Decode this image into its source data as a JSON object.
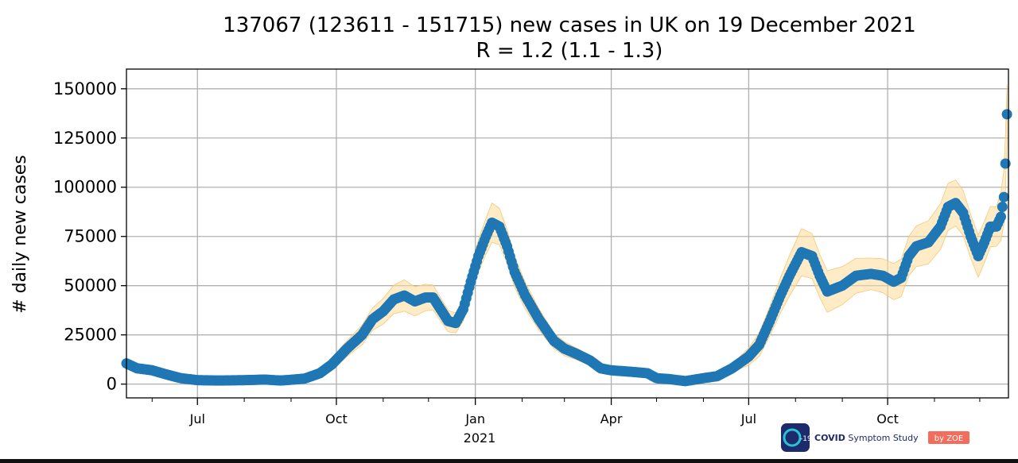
{
  "chart_data": {
    "type": "line",
    "title": "137067 (123611 - 151715) new cases in UK on 19 December 2021",
    "subtitle": "R = 1.2 (1.1 - 1.3)",
    "xlabel": "",
    "ylabel": "# daily new cases",
    "ylim": [
      -7000,
      160000
    ],
    "xlim": [
      "2020-05-15",
      "2021-12-20"
    ],
    "yticks": [
      0,
      25000,
      50000,
      75000,
      100000,
      125000,
      150000
    ],
    "ytick_labels": [
      "0",
      "25000",
      "50000",
      "75000",
      "100000",
      "125000",
      "150000"
    ],
    "xtick_major": [
      {
        "date": "2020-07-01",
        "label": "Jul"
      },
      {
        "date": "2020-10-01",
        "label": "Oct"
      },
      {
        "date": "2021-01-01",
        "label": "Jan"
      },
      {
        "date": "2021-04-01",
        "label": "Apr"
      },
      {
        "date": "2021-07-01",
        "label": "Jul"
      },
      {
        "date": "2021-10-01",
        "label": "Oct"
      }
    ],
    "xtick_minor_dates": [
      "2020-06-01",
      "2020-08-01",
      "2020-09-01",
      "2020-11-01",
      "2020-12-01",
      "2021-02-01",
      "2021-03-01",
      "2021-05-01",
      "2021-06-01",
      "2021-08-01",
      "2021-09-01",
      "2021-11-01",
      "2021-12-01"
    ],
    "year_label": {
      "date": "2021-01-01",
      "label": "2021"
    },
    "grid": true,
    "colors": {
      "series": "#1f77b4",
      "band": "#ffdd99"
    },
    "series": [
      {
        "values": [
          [
            "2020-05-15",
            10500
          ],
          [
            "2020-05-22",
            8000
          ],
          [
            "2020-06-01",
            7000
          ],
          [
            "2020-06-10",
            5000
          ],
          [
            "2020-06-20",
            3000
          ],
          [
            "2020-07-01",
            2000
          ],
          [
            "2020-07-15",
            1800
          ],
          [
            "2020-08-01",
            2000
          ],
          [
            "2020-08-15",
            2300
          ],
          [
            "2020-08-25",
            1800
          ],
          [
            "2020-09-01",
            2200
          ],
          [
            "2020-09-10",
            2800
          ],
          [
            "2020-09-20",
            5500
          ],
          [
            "2020-09-28",
            10000
          ],
          [
            "2020-10-08",
            18000
          ],
          [
            "2020-10-18",
            25000
          ],
          [
            "2020-10-25",
            33000
          ],
          [
            "2020-11-01",
            37000
          ],
          [
            "2020-11-08",
            43000
          ],
          [
            "2020-11-15",
            45000
          ],
          [
            "2020-11-22",
            42000
          ],
          [
            "2020-11-29",
            44000
          ],
          [
            "2020-12-04",
            44000
          ],
          [
            "2020-12-09",
            38000
          ],
          [
            "2020-12-14",
            32000
          ],
          [
            "2020-12-19",
            31000
          ],
          [
            "2020-12-24",
            38000
          ],
          [
            "2020-12-29",
            52000
          ],
          [
            "2021-01-03",
            65000
          ],
          [
            "2021-01-08",
            75000
          ],
          [
            "2021-01-12",
            82000
          ],
          [
            "2021-01-17",
            80000
          ],
          [
            "2021-01-22",
            70000
          ],
          [
            "2021-01-27",
            57000
          ],
          [
            "2021-02-03",
            45000
          ],
          [
            "2021-02-12",
            33000
          ],
          [
            "2021-02-22",
            22000
          ],
          [
            "2021-03-01",
            18000
          ],
          [
            "2021-03-10",
            15000
          ],
          [
            "2021-03-18",
            12000
          ],
          [
            "2021-03-25",
            8000
          ],
          [
            "2021-04-01",
            7000
          ],
          [
            "2021-04-10",
            6500
          ],
          [
            "2021-04-18",
            6000
          ],
          [
            "2021-04-25",
            5500
          ],
          [
            "2021-05-01",
            3000
          ],
          [
            "2021-05-10",
            2500
          ],
          [
            "2021-05-20",
            1500
          ],
          [
            "2021-06-01",
            3000
          ],
          [
            "2021-06-10",
            4000
          ],
          [
            "2021-06-20",
            8000
          ],
          [
            "2021-07-01",
            14000
          ],
          [
            "2021-07-08",
            20000
          ],
          [
            "2021-07-15",
            32000
          ],
          [
            "2021-07-22",
            45000
          ],
          [
            "2021-07-28",
            55000
          ],
          [
            "2021-08-05",
            67000
          ],
          [
            "2021-08-12",
            65000
          ],
          [
            "2021-08-17",
            55000
          ],
          [
            "2021-08-22",
            47000
          ],
          [
            "2021-09-01",
            50000
          ],
          [
            "2021-09-10",
            55000
          ],
          [
            "2021-09-20",
            56000
          ],
          [
            "2021-09-28",
            55000
          ],
          [
            "2021-10-05",
            52000
          ],
          [
            "2021-10-10",
            54000
          ],
          [
            "2021-10-15",
            65000
          ],
          [
            "2021-10-20",
            70000
          ],
          [
            "2021-10-28",
            72000
          ],
          [
            "2021-11-05",
            80000
          ],
          [
            "2021-11-10",
            90000
          ],
          [
            "2021-11-15",
            92000
          ],
          [
            "2021-11-20",
            87000
          ],
          [
            "2021-11-25",
            75000
          ],
          [
            "2021-11-30",
            65000
          ],
          [
            "2021-12-04",
            72000
          ],
          [
            "2021-12-08",
            80000
          ],
          [
            "2021-12-12",
            80000
          ],
          [
            "2021-12-15",
            85000
          ],
          [
            "2021-12-17",
            95000
          ],
          [
            "2021-12-18",
            112000
          ],
          [
            "2021-12-19",
            137067
          ]
        ]
      }
    ],
    "band_widths": [
      [
        "2020-05-15",
        2500
      ],
      [
        "2020-09-10",
        1500
      ],
      [
        "2020-10-18",
        5000
      ],
      [
        "2020-11-15",
        8000
      ],
      [
        "2020-12-19",
        5000
      ],
      [
        "2021-01-12",
        10000
      ],
      [
        "2021-02-22",
        4000
      ],
      [
        "2021-04-01",
        1500
      ],
      [
        "2021-06-20",
        2000
      ],
      [
        "2021-08-05",
        12000
      ],
      [
        "2021-09-20",
        8000
      ],
      [
        "2021-11-10",
        12000
      ],
      [
        "2021-12-12",
        10000
      ],
      [
        "2021-12-19",
        15000
      ]
    ]
  },
  "logo": {
    "badge_text": "-19",
    "name_bold": "COVID",
    "name_rest": " Symptom Study",
    "by_text": "by ZOE"
  }
}
